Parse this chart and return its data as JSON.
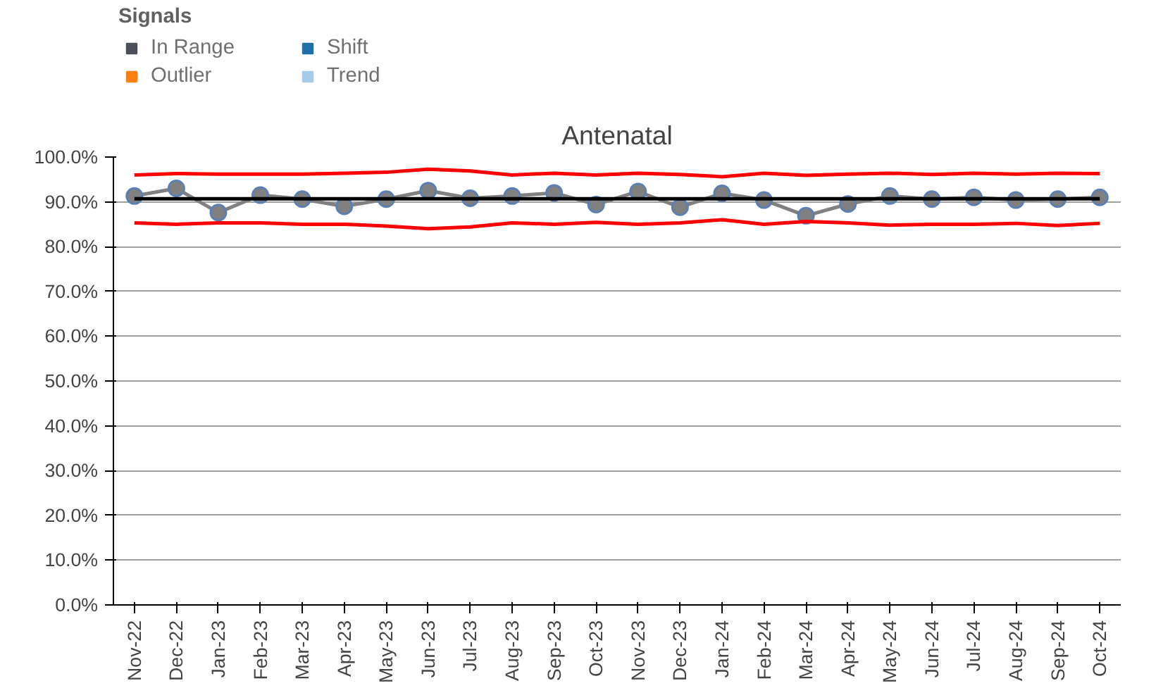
{
  "chart_data": {
    "type": "line",
    "title": "Antenatal",
    "legend_title": "Signals",
    "categories": [
      "Nov-22",
      "Dec-22",
      "Jan-23",
      "Feb-23",
      "Mar-23",
      "Apr-23",
      "May-23",
      "Jun-23",
      "Jul-23",
      "Aug-23",
      "Sep-23",
      "Oct-23",
      "Nov-23",
      "Dec-23",
      "Jan-24",
      "Feb-24",
      "Mar-24",
      "Apr-24",
      "May-24",
      "Jun-24",
      "Jul-24",
      "Aug-24",
      "Sep-24",
      "Oct-24"
    ],
    "series": [
      {
        "type": "line",
        "color": "#808080",
        "marker": "circle",
        "values": [
          91.3,
          93.0,
          87.6,
          91.5,
          90.6,
          89.0,
          90.6,
          92.5,
          90.8,
          91.3,
          92.0,
          89.4,
          92.3,
          88.8,
          91.9,
          90.4,
          86.9,
          89.5,
          91.3,
          90.6,
          91.0,
          90.4,
          90.6,
          91.0
        ]
      },
      {
        "type": "line",
        "color": "#000000",
        "marker": "none",
        "values": [
          90.7,
          90.7,
          90.7,
          90.7,
          90.7,
          90.7,
          90.7,
          90.7,
          90.7,
          90.7,
          90.7,
          90.7,
          90.7,
          90.7,
          90.7,
          90.7,
          90.7,
          90.7,
          90.7,
          90.7,
          90.7,
          90.7,
          90.7,
          90.7
        ]
      },
      {
        "type": "line",
        "color": "#ff0000",
        "marker": "none",
        "values": [
          96.0,
          96.3,
          96.2,
          96.2,
          96.2,
          96.4,
          96.6,
          97.3,
          96.9,
          96.0,
          96.4,
          96.0,
          96.4,
          96.1,
          95.6,
          96.4,
          95.9,
          96.2,
          96.4,
          96.1,
          96.4,
          96.2,
          96.4,
          96.3
        ]
      },
      {
        "type": "line",
        "color": "#ff0000",
        "marker": "none",
        "values": [
          85.3,
          85.0,
          85.3,
          85.3,
          85.0,
          85.0,
          84.6,
          84.0,
          84.4,
          85.3,
          85.0,
          85.4,
          85.0,
          85.3,
          86.0,
          85.0,
          85.6,
          85.3,
          84.8,
          85.0,
          85.0,
          85.2,
          84.7,
          85.2
        ]
      },
      {
        "type": "scatter",
        "name": "In Range",
        "color": "#4a4f5a",
        "marker": "square",
        "values": [
          null,
          null,
          null,
          null,
          null,
          null,
          null,
          null,
          null,
          null,
          null,
          null,
          null,
          null,
          null,
          null,
          null,
          null,
          null,
          null,
          null,
          null,
          null,
          null
        ]
      },
      {
        "type": "scatter",
        "name": "Outlier",
        "color": "#ff7f0e",
        "marker": "square",
        "values": [
          null,
          null,
          null,
          null,
          null,
          null,
          null,
          null,
          null,
          null,
          null,
          null,
          null,
          null,
          null,
          null,
          null,
          null,
          null,
          null,
          null,
          null,
          null,
          null
        ]
      },
      {
        "type": "scatter",
        "name": "Shift",
        "color": "#1f6fa8",
        "marker": "square",
        "values": [
          null,
          null,
          null,
          null,
          null,
          null,
          null,
          null,
          null,
          null,
          null,
          null,
          null,
          null,
          null,
          null,
          null,
          null,
          null,
          null,
          null,
          null,
          null,
          null
        ]
      },
      {
        "type": "scatter",
        "name": "Trend",
        "color": "#a6cbe8",
        "marker": "square",
        "values": [
          null,
          null,
          null,
          null,
          null,
          null,
          null,
          null,
          null,
          null,
          null,
          null,
          null,
          null,
          null,
          null,
          null,
          null,
          null,
          null,
          null,
          null,
          null,
          null
        ]
      }
    ],
    "ylim": [
      0,
      100
    ],
    "yticks": [
      {
        "value": 0,
        "label": "0.0%"
      },
      {
        "value": 10,
        "label": "10.0%"
      },
      {
        "value": 20,
        "label": "20.0%"
      },
      {
        "value": 30,
        "label": "30.0%"
      },
      {
        "value": 40,
        "label": "40.0%"
      },
      {
        "value": 50,
        "label": "50.0%"
      },
      {
        "value": 60,
        "label": "60.0%"
      },
      {
        "value": 70,
        "label": "70.0%"
      },
      {
        "value": 80,
        "label": "80.0%"
      },
      {
        "value": 90,
        "label": "90.0%"
      },
      {
        "value": 100,
        "label": "100.0%"
      }
    ],
    "grid": "y",
    "legend": "top left"
  }
}
